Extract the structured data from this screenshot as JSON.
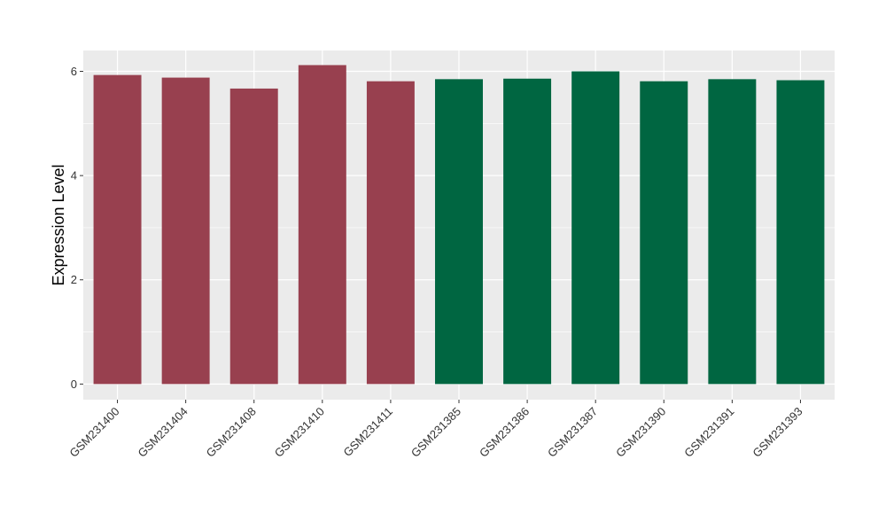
{
  "chart_data": {
    "type": "bar",
    "categories": [
      "GSM231400",
      "GSM231404",
      "GSM231408",
      "GSM231410",
      "GSM231411",
      "GSM231385",
      "GSM231386",
      "GSM231387",
      "GSM231390",
      "GSM231391",
      "GSM231393"
    ],
    "values": [
      5.93,
      5.88,
      5.67,
      6.12,
      5.81,
      5.85,
      5.86,
      6.0,
      5.81,
      5.85,
      5.83
    ],
    "bar_colors": [
      "#98404f",
      "#98404f",
      "#98404f",
      "#98404f",
      "#98404f",
      "#006641",
      "#006641",
      "#006641",
      "#006641",
      "#006641",
      "#006641"
    ],
    "title": "",
    "xlabel": "",
    "ylabel": "Expression Level",
    "ylim": [
      -0.3,
      6.4
    ],
    "yticks": [
      0,
      2,
      4,
      6
    ],
    "ytick_labels": [
      "0",
      "2",
      "4",
      "6"
    ],
    "grid": true,
    "panel_background": "#ebebeb",
    "grid_color": "#ffffff"
  }
}
